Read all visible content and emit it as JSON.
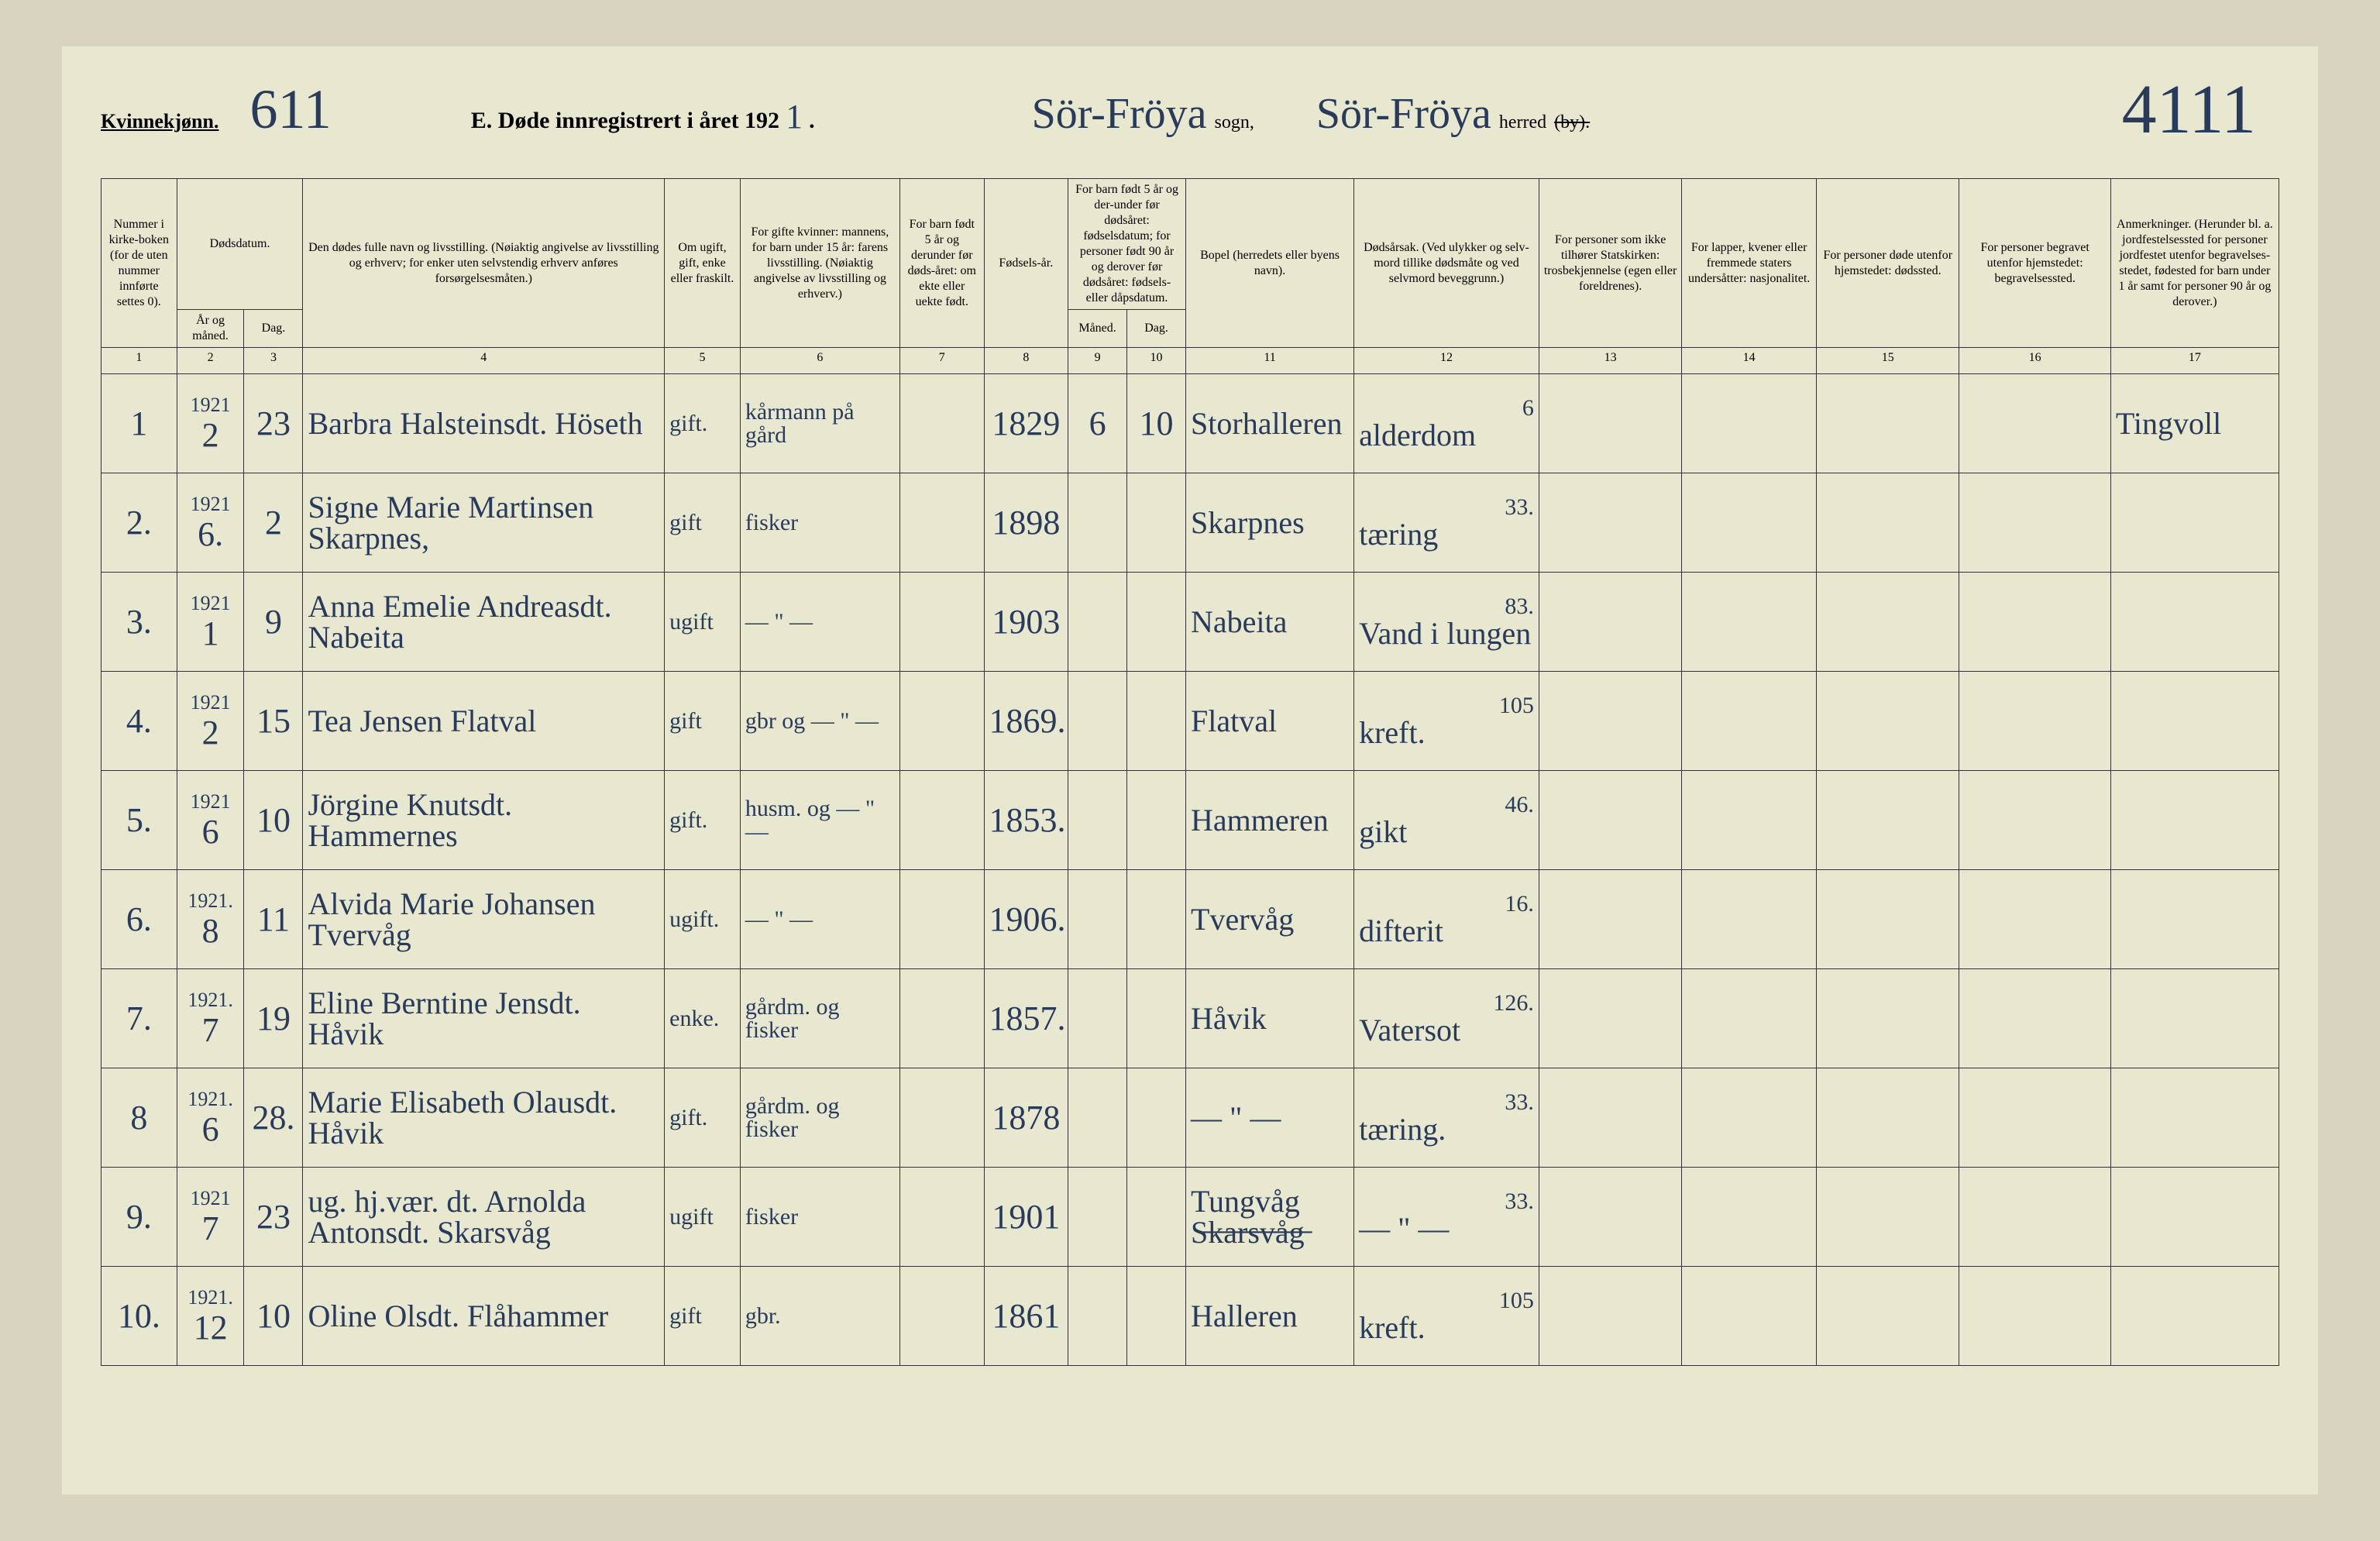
{
  "header": {
    "gender_label": "Kvinnekjønn.",
    "page_no_hw": "611",
    "title_prefix": "E.  Døde innregistrert i året 192",
    "title_year_hw": "1",
    "title_suffix": ".",
    "sogn_hw": "Sör-Fröya",
    "sogn_label": "sogn,",
    "herred_hw": "Sör-Fröya",
    "herred_label": "herred",
    "herred_strike": "(by).",
    "folio_hw": "4111"
  },
  "columns": {
    "h1": "Nummer i kirke-boken (for de uten nummer innførte settes 0).",
    "h2_top": "Dødsdatum.",
    "h2a": "År og måned.",
    "h2b": "Dag.",
    "h4": "Den dødes fulle navn og livsstilling. (Nøiaktig angivelse av livsstilling og erhverv; for enker uten selvstendig erhverv anføres forsørgelsesmåten.)",
    "h5": "Om ugift, gift, enke eller fraskilt.",
    "h6": "For gifte kvinner: mannens, for barn under 15 år: farens livsstilling. (Nøiaktig angivelse av livsstilling og erhverv.)",
    "h7": "For barn født 5 år og derunder før døds-året: om ekte eller uekte født.",
    "h8": "Fødsels-år.",
    "h9_top": "For barn født 5 år og der-under før dødsåret: fødselsdatum; for personer født 90 år og derover før dødsåret: fødsels- eller dåpsdatum.",
    "h9a": "Måned.",
    "h9b": "Dag.",
    "h11": "Bopel (herredets eller byens navn).",
    "h12": "Dødsårsak. (Ved ulykker og selv-mord tillike dødsmåte og ved selvmord beveggrunn.)",
    "h13": "For personer som ikke tilhører Statskirken: trosbekjennelse (egen eller foreldrenes).",
    "h14": "For lapper, kvener eller fremmede staters undersåtter: nasjonalitet.",
    "h15": "For personer døde utenfor hjemstedet: dødssted.",
    "h16": "For personer begravet utenfor hjemstedet: begravelsessted.",
    "h17": "Anmerkninger. (Herunder bl. a. jordfestelsessted for personer jordfestet utenfor begravelses-stedet, fødested for barn under 1 år samt for personer 90 år og derover.)",
    "nums": [
      "1",
      "2",
      "3",
      "4",
      "5",
      "6",
      "7",
      "8",
      "9",
      "10",
      "11",
      "12",
      "13",
      "14",
      "15",
      "16",
      "17"
    ]
  },
  "rows": [
    {
      "n": "1",
      "year": "1921",
      "mon": "2",
      "day": "23",
      "name": "Barbra Halsteinsdt. Höseth",
      "status": "gift.",
      "spouse": "kårmann på gård",
      "c7": "",
      "birth": "1829",
      "m9": "6",
      "d10": "10",
      "place": "Storhalleren",
      "cause": "alderdom",
      "cnum": "6",
      "c17": "Tingvoll"
    },
    {
      "n": "2.",
      "year": "1921",
      "mon": "6.",
      "day": "2",
      "name": "Signe Marie Martinsen Skarpnes,",
      "status": "gift",
      "spouse": "fisker",
      "c7": "",
      "birth": "1898",
      "m9": "",
      "d10": "",
      "place": "Skarpnes",
      "cause": "tæring",
      "cnum": "33.",
      "c17": ""
    },
    {
      "n": "3.",
      "year": "1921",
      "mon": "1",
      "day": "9",
      "name": "Anna Emelie Andreasdt. Nabeita",
      "status": "ugift",
      "spouse": "— \" —",
      "c7": "",
      "birth": "1903",
      "m9": "",
      "d10": "",
      "place": "Nabeita",
      "cause": "Vand i lungen",
      "cnum": "83.",
      "c17": ""
    },
    {
      "n": "4.",
      "year": "1921",
      "mon": "2",
      "day": "15",
      "name": "Tea Jensen Flatval",
      "status": "gift",
      "spouse": "gbr og  — \" —",
      "c7": "",
      "birth": "1869.",
      "m9": "",
      "d10": "",
      "place": "Flatval",
      "cause": "kreft.",
      "cnum": "105",
      "c17": ""
    },
    {
      "n": "5.",
      "year": "1921",
      "mon": "6",
      "day": "10",
      "name": "Jörgine Knutsdt. Hammernes",
      "status": "gift.",
      "spouse": "husm. og  — \" —",
      "c7": "",
      "birth": "1853.",
      "m9": "",
      "d10": "",
      "place": "Hammeren",
      "cause": "gikt",
      "cnum": "46.",
      "c17": ""
    },
    {
      "n": "6.",
      "year": "1921.",
      "mon": "8",
      "day": "11",
      "name": "Alvida Marie Johansen Tvervåg",
      "status": "ugift.",
      "spouse": "— \" —",
      "c7": "",
      "birth": "1906.",
      "m9": "",
      "d10": "",
      "place": "Tvervåg",
      "cause": "difterit",
      "cnum": "16.",
      "c17": ""
    },
    {
      "n": "7.",
      "year": "1921.",
      "mon": "7",
      "day": "19",
      "name": "Eline Berntine Jensdt. Håvik",
      "status": "enke.",
      "spouse": "gårdm. og fisker",
      "c7": "",
      "birth": "1857.",
      "m9": "",
      "d10": "",
      "place": "Håvik",
      "cause": "Vatersot",
      "cnum": "126.",
      "c17": ""
    },
    {
      "n": "8",
      "year": "1921.",
      "mon": "6",
      "day": "28.",
      "name": "Marie Elisabeth Olausdt. Håvik",
      "status": "gift.",
      "spouse": "gårdm. og fisker",
      "c7": "",
      "birth": "1878",
      "m9": "",
      "d10": "",
      "place": "— \" —",
      "cause": "tæring.",
      "cnum": "33.",
      "c17": ""
    },
    {
      "n": "9.",
      "year": "1921",
      "mon": "7",
      "day": "23",
      "name": "ug. hj.vær. dt. Arnolda Antonsdt. Skarsvåg",
      "status": "ugift",
      "spouse": "fisker",
      "c7": "",
      "birth": "1901",
      "m9": "",
      "d10": "",
      "place": "Tungvåg S̶k̶a̶r̶s̶v̶å̶g̶",
      "cause": "— \" —",
      "cnum": "33.",
      "c17": ""
    },
    {
      "n": "10.",
      "year": "1921.",
      "mon": "12",
      "day": "10",
      "name": "Oline Olsdt. Flåhammer",
      "status": "gift",
      "spouse": "gbr.",
      "c7": "",
      "birth": "1861",
      "m9": "",
      "d10": "",
      "place": "Halleren",
      "cause": "kreft.",
      "cnum": "105",
      "c17": ""
    }
  ],
  "colors": {
    "paper": "#e8e8d0",
    "ink_print": "#222222",
    "ink_hand": "#2a3a5a",
    "border": "#333333"
  }
}
